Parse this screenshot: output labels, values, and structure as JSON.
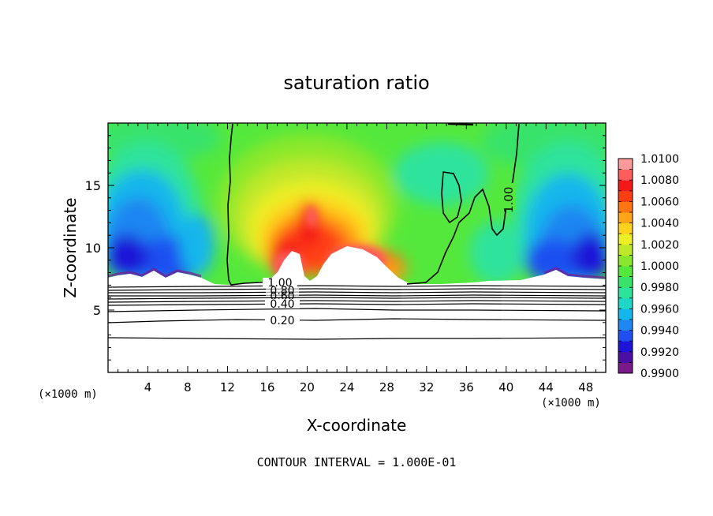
{
  "chart_data": {
    "type": "heatmap",
    "title": "saturation ratio",
    "xlabel": "X-coordinate",
    "ylabel": "Z-coordinate",
    "x_unit_left": "(×1000 m)",
    "x_unit_right": "(×1000 m)",
    "xlim": [
      0,
      50
    ],
    "ylim": [
      0,
      20
    ],
    "x_ticks": [
      4,
      8,
      12,
      16,
      20,
      24,
      28,
      32,
      36,
      40,
      44,
      48
    ],
    "y_ticks": [
      5,
      10,
      15
    ],
    "contour_interval_text": "CONTOUR INTERVAL = 1.000E-01",
    "colorbar": {
      "min": 0.99,
      "max": 1.01,
      "labels": [
        "1.0100",
        "1.0080",
        "1.0060",
        "1.0040",
        "1.0020",
        "1.0000",
        "0.9980",
        "0.9960",
        "0.9940",
        "0.9920",
        "0.9900"
      ],
      "colors": [
        "#7a1a8a",
        "#4b0fa6",
        "#1e14d8",
        "#1f4ff0",
        "#1f86f2",
        "#15b6ec",
        "#1dd7c8",
        "#2de39c",
        "#39e36a",
        "#55e83c",
        "#8ae82c",
        "#bfe82a",
        "#ecee26",
        "#ffd21e",
        "#ffa516",
        "#ff7512",
        "#ff3f12",
        "#f41818",
        "#ff5c5c",
        "#ff9a9a"
      ]
    },
    "contour_labels": [
      {
        "text": "1.00",
        "x": 38.7,
        "y": 13.7
      },
      {
        "text": "1.00",
        "x": 17.4,
        "y": 7.0
      },
      {
        "text": "0.80",
        "x": 17.8,
        "y": 6.6
      },
      {
        "text": "0.60",
        "x": 17.8,
        "y": 6.1
      },
      {
        "text": "0.40",
        "x": 17.6,
        "y": 5.5
      },
      {
        "text": "0.20",
        "x": 17.6,
        "y": 4.2
      }
    ],
    "contour_levels_below_cloud": [
      {
        "level": 1.0,
        "z": 7.1
      },
      {
        "level": 0.9,
        "z": 6.8
      },
      {
        "level": 0.8,
        "z": 6.5
      },
      {
        "level": 0.7,
        "z": 6.2
      },
      {
        "level": 0.6,
        "z": 6.0
      },
      {
        "level": 0.5,
        "z": 5.8
      },
      {
        "level": 0.4,
        "z": 5.5
      },
      {
        "level": 0.3,
        "z": 5.0
      },
      {
        "level": 0.2,
        "z": 4.2
      },
      {
        "level": 0.1,
        "z": 2.9
      }
    ]
  }
}
